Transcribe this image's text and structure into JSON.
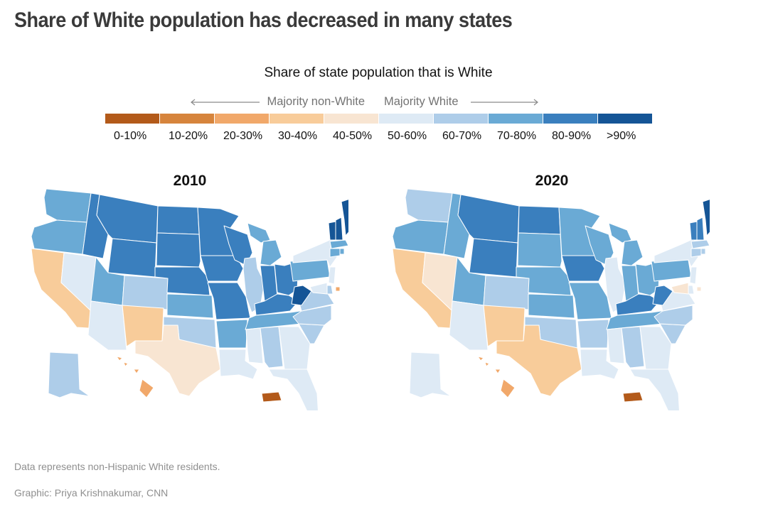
{
  "headline": "Share of White population has decreased in many states",
  "legend": {
    "title": "Share of state population that is White",
    "left_label": "Majority non-White",
    "right_label": "Majority White",
    "bins": [
      {
        "label": "0-10%",
        "color": "#b35a1a"
      },
      {
        "label": "10-20%",
        "color": "#d6843c"
      },
      {
        "label": "20-30%",
        "color": "#f1a86a"
      },
      {
        "label": "30-40%",
        "color": "#f8cc9a"
      },
      {
        "label": "40-50%",
        "color": "#f8e5d2"
      },
      {
        "label": "50-60%",
        "color": "#deeaf5"
      },
      {
        "label": "60-70%",
        "color": "#aecde9"
      },
      {
        "label": "70-80%",
        "color": "#6aaad5"
      },
      {
        "label": "80-90%",
        "color": "#3a7fbe"
      },
      {
        "label": ">90%",
        "color": "#155596"
      }
    ]
  },
  "maps": [
    {
      "year": "2010",
      "bins": {
        "WA": 7,
        "OR": 7,
        "CA": 3,
        "NV": 5,
        "ID": 8,
        "MT": 8,
        "WY": 8,
        "UT": 7,
        "AZ": 5,
        "CO": 6,
        "NM": 3,
        "ND": 8,
        "SD": 8,
        "NE": 8,
        "KS": 7,
        "OK": 6,
        "TX": 4,
        "MN": 8,
        "IA": 8,
        "MO": 8,
        "AR": 7,
        "LA": 5,
        "WI": 8,
        "IL": 6,
        "MI": 7,
        "IN": 8,
        "OH": 8,
        "KY": 8,
        "TN": 7,
        "MS": 5,
        "AL": 6,
        "GA": 5,
        "FL": 5,
        "SC": 6,
        "NC": 6,
        "VA": 6,
        "WV": 9,
        "PA": 7,
        "NY": 5,
        "VT": 9,
        "NH": 9,
        "ME": 9,
        "MA": 7,
        "CT": 7,
        "RI": 7,
        "NJ": 5,
        "DE": 6,
        "MD": 5,
        "DC": 2,
        "AK": 6,
        "HI": 2,
        "PR": 0
      }
    },
    {
      "year": "2020",
      "bins": {
        "WA": 6,
        "OR": 7,
        "CA": 3,
        "NV": 4,
        "ID": 7,
        "MT": 8,
        "WY": 8,
        "UT": 7,
        "AZ": 5,
        "CO": 6,
        "NM": 3,
        "ND": 8,
        "SD": 7,
        "NE": 7,
        "KS": 7,
        "OK": 6,
        "TX": 3,
        "MN": 7,
        "IA": 8,
        "MO": 7,
        "AR": 6,
        "LA": 5,
        "WI": 7,
        "IL": 5,
        "MI": 7,
        "IN": 7,
        "OH": 7,
        "KY": 8,
        "TN": 7,
        "MS": 5,
        "AL": 6,
        "GA": 5,
        "FL": 5,
        "SC": 6,
        "NC": 6,
        "VA": 5,
        "WV": 8,
        "PA": 7,
        "NY": 5,
        "VT": 8,
        "NH": 8,
        "ME": 9,
        "MA": 6,
        "CT": 6,
        "RI": 6,
        "NJ": 5,
        "DE": 5,
        "MD": 4,
        "DC": 4,
        "AK": 5,
        "HI": 2,
        "PR": 0
      }
    }
  ],
  "notes": {
    "data_note": "Data represents non-Hispanic White residents.",
    "credit": "Graphic: Priya Krishnakumar, CNN"
  }
}
